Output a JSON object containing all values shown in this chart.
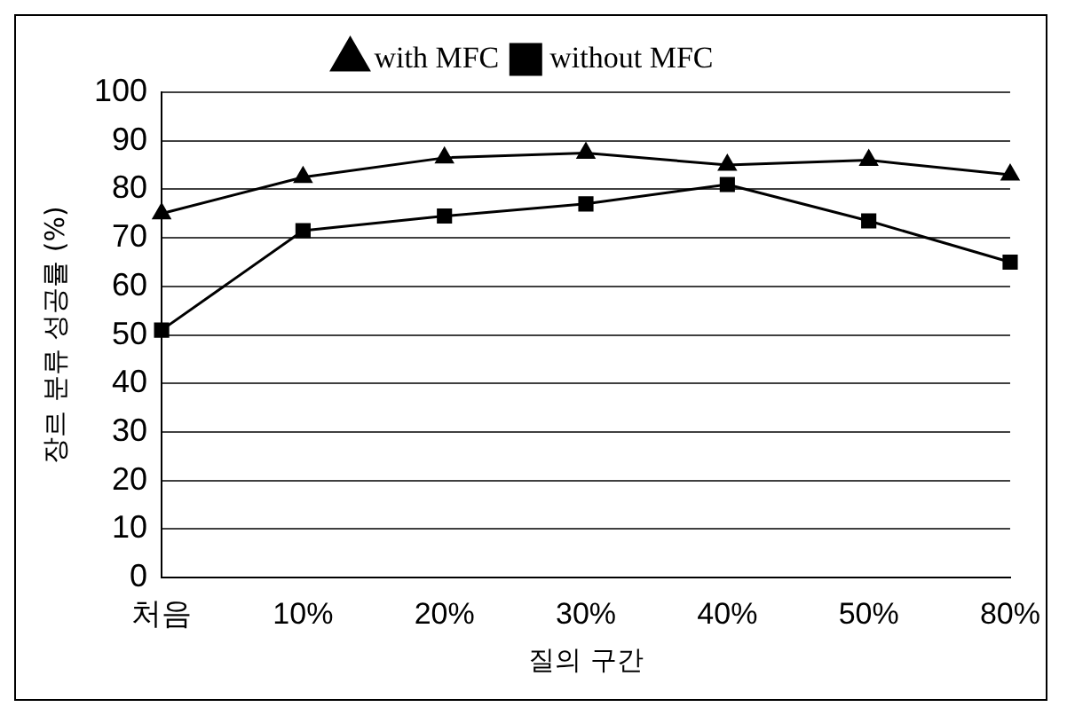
{
  "chart_data": {
    "type": "line",
    "xlabel": "질의 구간",
    "ylabel": "장르 분류 성공률 (%)",
    "categories": [
      "처음",
      "10%",
      "20%",
      "30%",
      "40%",
      "50%",
      "80%"
    ],
    "series": [
      {
        "name": "with MFC",
        "color": "#000000",
        "marker": "triangle",
        "values": [
          75,
          82.5,
          86.5,
          87.5,
          85,
          86,
          83
        ]
      },
      {
        "name": "without MFC",
        "color": "#000000",
        "marker": "square",
        "values": [
          51,
          71.5,
          74.5,
          77,
          81,
          73.5,
          65
        ]
      }
    ],
    "ylim": [
      0,
      100
    ],
    "yticks": [
      0,
      10,
      20,
      30,
      40,
      50,
      60,
      70,
      80,
      90,
      100
    ],
    "grid": "y",
    "legend": "top",
    "line_style": "solid"
  }
}
